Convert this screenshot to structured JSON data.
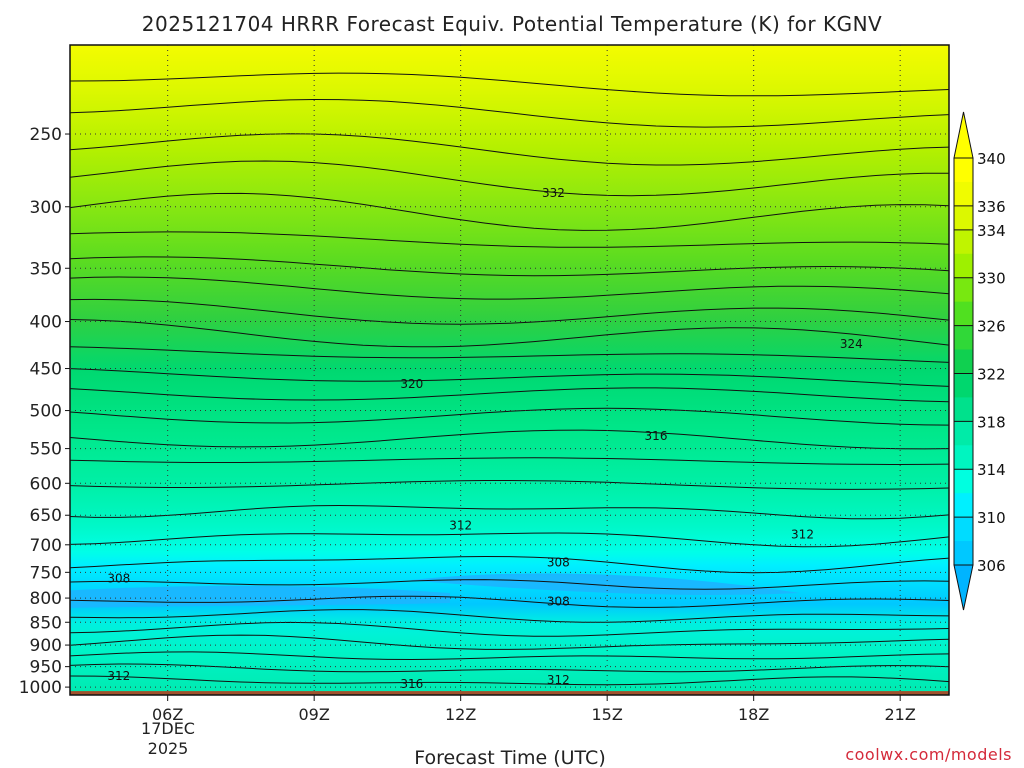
{
  "page": {
    "credit": "coolwx.com/models"
  },
  "chart_data": {
    "type": "heatmap",
    "title": "2025121704 HRRR Forecast Equiv. Potential Temperature (K) for KGNV",
    "xlabel": "Forecast Time (UTC)",
    "ylabel": "",
    "x_ticks": [
      "06Z",
      "09Z",
      "12Z",
      "15Z",
      "18Z",
      "21Z"
    ],
    "x_date_label": [
      "17DEC",
      "2025"
    ],
    "x_range_hours": [
      4,
      22
    ],
    "y_ticks": [
      250,
      300,
      350,
      400,
      450,
      500,
      550,
      600,
      650,
      700,
      750,
      800,
      850,
      900,
      950,
      1000
    ],
    "y_range": [
      200,
      1020
    ],
    "y_scale": "log-pressure",
    "grid": true,
    "colorbar": {
      "levels": [
        306,
        308,
        310,
        312,
        314,
        316,
        318,
        320,
        322,
        324,
        326,
        328,
        330,
        332,
        334,
        336,
        338,
        340
      ],
      "labels": [
        306,
        310,
        314,
        318,
        322,
        326,
        330,
        334,
        336,
        340
      ],
      "colors": [
        "#00c8ff",
        "#00dcff",
        "#00f0ff",
        "#00ffe0",
        "#00f5c0",
        "#00eba8",
        "#00e18c",
        "#00d76e",
        "#10d050",
        "#30d838",
        "#50e020",
        "#78e810",
        "#9ef000",
        "#c0f400",
        "#dcf800",
        "#f0fc00",
        "#ffff00"
      ],
      "extend": "both"
    },
    "contour_labels": [
      {
        "text": "332",
        "hour": 13.9,
        "p": 290
      },
      {
        "text": "324",
        "hour": 20.0,
        "p": 423
      },
      {
        "text": "320",
        "hour": 11.0,
        "p": 468
      },
      {
        "text": "316",
        "hour": 16.0,
        "p": 533
      },
      {
        "text": "312",
        "hour": 12.0,
        "p": 667
      },
      {
        "text": "312",
        "hour": 19.0,
        "p": 682
      },
      {
        "text": "308",
        "hour": 5.0,
        "p": 762
      },
      {
        "text": "308",
        "hour": 14.0,
        "p": 732
      },
      {
        "text": "308",
        "hour": 14.0,
        "p": 807
      },
      {
        "text": "312",
        "hour": 5.0,
        "p": 972
      },
      {
        "text": "312",
        "hour": 14.0,
        "p": 982
      },
      {
        "text": "316",
        "hour": 11.0,
        "p": 992
      }
    ]
  }
}
